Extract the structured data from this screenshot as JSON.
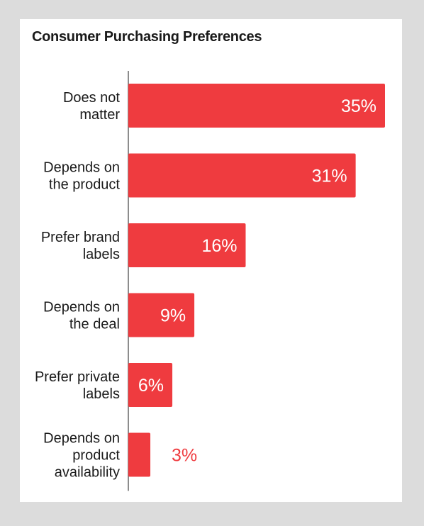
{
  "chart_data": {
    "type": "bar",
    "orientation": "horizontal",
    "title": "Consumer Purchasing Preferences",
    "xlabel": "",
    "ylabel": "",
    "categories": [
      "Does not matter",
      "Depends on the product",
      "Prefer brand labels",
      "Depends on the deal",
      "Prefer private labels",
      "Depends on product availability"
    ],
    "category_lines": [
      [
        "Does not",
        "matter"
      ],
      [
        "Depends on",
        "the product"
      ],
      [
        "Prefer brand",
        "labels"
      ],
      [
        "Depends on",
        "the deal"
      ],
      [
        "Prefer private",
        "labels"
      ],
      [
        "Depends on",
        "product",
        "availability"
      ]
    ],
    "values": [
      35,
      31,
      16,
      9,
      6,
      3
    ],
    "value_labels": [
      "35%",
      "31%",
      "16%",
      "9%",
      "6%",
      "3%"
    ],
    "xlim": [
      0,
      35
    ],
    "grid": false,
    "legend": "none",
    "colors": {
      "bar": "#ef3b3f",
      "label_inside": "#ffffff",
      "label_outside": "#ef3b3f",
      "axis": "#666666"
    }
  }
}
